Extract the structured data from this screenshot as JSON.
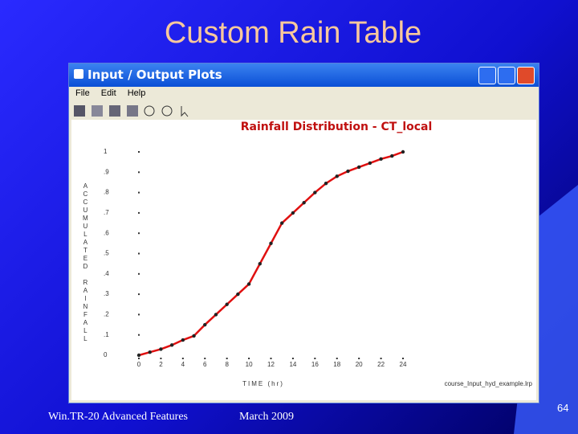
{
  "slide": {
    "title": "Custom Rain Table",
    "footer_left": "Win.TR-20 Advanced Features",
    "footer_date": "March 2009",
    "page_number": "64"
  },
  "window": {
    "title": "Input / Output Plots",
    "menu": [
      "File",
      "Edit",
      "Help"
    ]
  },
  "chart_data": {
    "type": "line",
    "title": "Rainfall Distribution - CT_local",
    "x_label": "TIME (hr)",
    "y_label": "ACCUMULATED RAINFALL",
    "annotation": "course_Input_hyd_example.lrp",
    "x": [
      0,
      1,
      2,
      3,
      4,
      5,
      6,
      7,
      8,
      9,
      10,
      11,
      12,
      13,
      14,
      15,
      16,
      17,
      18,
      19,
      20,
      21,
      22,
      23,
      24
    ],
    "series": [
      {
        "name": "CT_local",
        "color": "#e01010",
        "values": [
          0,
          0.015,
          0.03,
          0.05,
          0.075,
          0.095,
          0.15,
          0.2,
          0.25,
          0.3,
          0.35,
          0.45,
          0.55,
          0.65,
          0.7,
          0.75,
          0.8,
          0.845,
          0.88,
          0.905,
          0.925,
          0.945,
          0.965,
          0.98,
          1
        ]
      }
    ],
    "xlim": [
      0,
      24
    ],
    "xticks": [
      0,
      2,
      4,
      6,
      8,
      10,
      12,
      14,
      16,
      18,
      20,
      22,
      24
    ],
    "ylim": [
      0,
      1
    ],
    "yticks": [
      0,
      {
        "value": 0.1,
        "label": ".1"
      },
      {
        "value": 0.2,
        "label": ".2"
      },
      {
        "value": 0.3,
        "label": ".3"
      },
      {
        "value": 0.4,
        "label": ".4"
      },
      {
        "value": 0.5,
        "label": ".5"
      },
      {
        "value": 0.6,
        "label": ".6"
      },
      {
        "value": 0.7,
        "label": ".7"
      },
      {
        "value": 0.8,
        "label": ".8"
      },
      {
        "value": 0.9,
        "label": ".9"
      },
      1
    ]
  }
}
